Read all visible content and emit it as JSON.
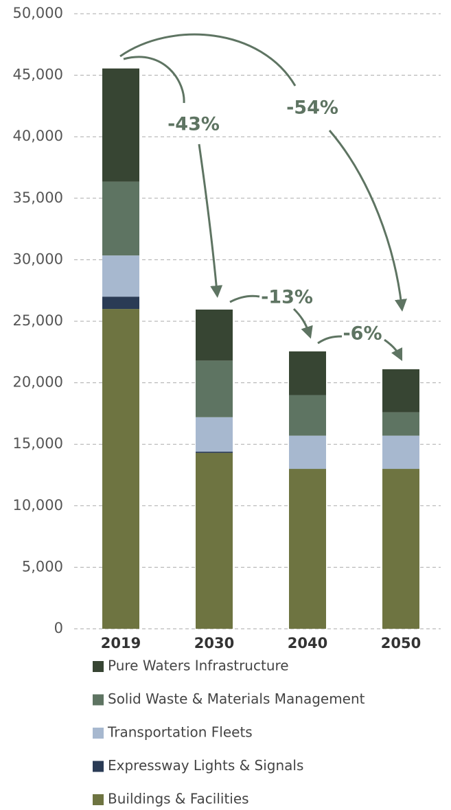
{
  "chart_data": {
    "type": "stacked_bar",
    "categories": [
      "2019",
      "2030",
      "2040",
      "2050"
    ],
    "series": [
      {
        "name": "Buildings & Facilities",
        "color": "#6e7441",
        "values": [
          26000,
          14300,
          13000,
          13000
        ]
      },
      {
        "name": "Expressway Lights & Signals",
        "color": "#2a3b55",
        "values": [
          1000,
          100,
          0,
          0
        ]
      },
      {
        "name": "Transportation Fleets",
        "color": "#a7b8cf",
        "values": [
          3350,
          2800,
          2700,
          2700
        ]
      },
      {
        "name": "Solid Waste & Materials Management",
        "color": "#5e7462",
        "values": [
          6000,
          4600,
          3300,
          1900
        ]
      },
      {
        "name": "Pure Waters Infrastructure",
        "color": "#374533",
        "values": [
          9200,
          4150,
          3550,
          3500
        ]
      }
    ],
    "ylim": [
      0,
      50000
    ],
    "yticks": [
      0,
      {
        "value": 5000,
        "label": "5,000"
      },
      {
        "value": 10000,
        "label": "10,000"
      },
      {
        "value": 15000,
        "label": "15,000"
      },
      {
        "value": 20000,
        "label": "20,000"
      },
      {
        "value": 25000,
        "label": "25,000"
      },
      {
        "value": 30000,
        "label": "30,000"
      },
      {
        "value": 35000,
        "label": "35,000"
      },
      {
        "value": 40000,
        "label": "40,000"
      },
      {
        "value": 45000,
        "label": "45,000"
      },
      {
        "value": 50000,
        "label": "50,000"
      }
    ],
    "grid": true,
    "annotations": [
      "-43%",
      "-54%",
      "-13%",
      "-6%"
    ]
  }
}
